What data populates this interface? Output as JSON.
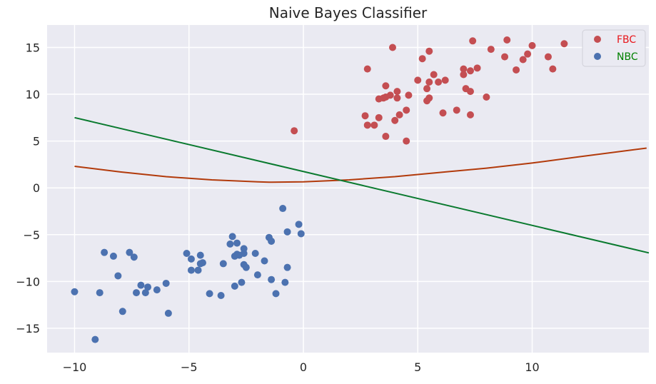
{
  "chart_data": {
    "type": "scatter",
    "title": "Naive Bayes Classifier",
    "xlabel": "",
    "ylabel": "",
    "xlim": [
      -11.2,
      15.1
    ],
    "ylim": [
      -17.6,
      17.4
    ],
    "xticks": [
      -10,
      -5,
      0,
      5,
      10
    ],
    "xtick_labels": [
      "−10",
      "−5",
      "0",
      "5",
      "10"
    ],
    "yticks": [
      -15,
      -10,
      -5,
      0,
      5,
      10,
      15
    ],
    "ytick_labels": [
      "−15",
      "−10",
      "−5",
      "0",
      "5",
      "10",
      "15"
    ],
    "grid": true,
    "legend_position": "top-right",
    "background_color": "#eaeaf2",
    "series": [
      {
        "name": "FBC",
        "type": "scatter",
        "color": "#c44e52",
        "label_color": "#e8161b",
        "points": [
          [
            -0.4,
            6.1
          ],
          [
            2.7,
            7.7
          ],
          [
            2.8,
            6.7
          ],
          [
            2.8,
            12.7
          ],
          [
            3.1,
            6.7
          ],
          [
            3.3,
            7.5
          ],
          [
            3.3,
            9.5
          ],
          [
            3.5,
            9.6
          ],
          [
            3.6,
            9.7
          ],
          [
            3.6,
            10.9
          ],
          [
            3.6,
            5.5
          ],
          [
            3.8,
            9.9
          ],
          [
            3.9,
            15.0
          ],
          [
            4.0,
            7.2
          ],
          [
            4.1,
            9.6
          ],
          [
            4.1,
            10.3
          ],
          [
            4.2,
            7.8
          ],
          [
            4.5,
            5.0
          ],
          [
            4.5,
            8.3
          ],
          [
            4.6,
            9.9
          ],
          [
            5.0,
            11.5
          ],
          [
            5.2,
            13.8
          ],
          [
            5.4,
            9.3
          ],
          [
            5.4,
            10.6
          ],
          [
            5.5,
            9.6
          ],
          [
            5.5,
            11.3
          ],
          [
            5.5,
            14.6
          ],
          [
            5.7,
            12.1
          ],
          [
            5.9,
            11.3
          ],
          [
            6.1,
            8.0
          ],
          [
            6.2,
            11.5
          ],
          [
            6.7,
            8.3
          ],
          [
            7.0,
            12.7
          ],
          [
            7.0,
            12.1
          ],
          [
            7.1,
            10.6
          ],
          [
            7.3,
            7.8
          ],
          [
            7.3,
            10.3
          ],
          [
            7.3,
            12.5
          ],
          [
            7.4,
            15.7
          ],
          [
            7.6,
            12.8
          ],
          [
            8.0,
            9.7
          ],
          [
            8.2,
            14.8
          ],
          [
            8.8,
            14.0
          ],
          [
            8.9,
            15.8
          ],
          [
            9.3,
            12.6
          ],
          [
            9.6,
            13.7
          ],
          [
            9.8,
            14.3
          ],
          [
            10.0,
            15.2
          ],
          [
            10.7,
            14.0
          ],
          [
            10.9,
            12.7
          ],
          [
            11.4,
            15.4
          ]
        ]
      },
      {
        "name": "NBC",
        "type": "scatter",
        "color": "#4c72b0",
        "label_color": "#008000",
        "points": [
          [
            -10.0,
            -11.1
          ],
          [
            -9.1,
            -16.2
          ],
          [
            -8.9,
            -11.2
          ],
          [
            -8.7,
            -6.9
          ],
          [
            -8.3,
            -7.3
          ],
          [
            -8.1,
            -9.4
          ],
          [
            -7.9,
            -13.2
          ],
          [
            -7.6,
            -6.9
          ],
          [
            -7.4,
            -7.4
          ],
          [
            -7.3,
            -11.2
          ],
          [
            -7.1,
            -10.4
          ],
          [
            -6.9,
            -11.2
          ],
          [
            -6.8,
            -10.6
          ],
          [
            -6.4,
            -10.9
          ],
          [
            -6.0,
            -10.2
          ],
          [
            -5.9,
            -13.4
          ],
          [
            -5.1,
            -7.0
          ],
          [
            -4.9,
            -7.6
          ],
          [
            -4.9,
            -8.8
          ],
          [
            -4.6,
            -8.8
          ],
          [
            -4.5,
            -7.2
          ],
          [
            -4.5,
            -8.1
          ],
          [
            -4.4,
            -8.0
          ],
          [
            -4.1,
            -11.3
          ],
          [
            -3.6,
            -11.5
          ],
          [
            -3.5,
            -8.1
          ],
          [
            -3.2,
            -6.0
          ],
          [
            -3.1,
            -5.2
          ],
          [
            -3.0,
            -7.3
          ],
          [
            -3.0,
            -10.5
          ],
          [
            -2.9,
            -5.9
          ],
          [
            -2.9,
            -7.1
          ],
          [
            -2.8,
            -7.2
          ],
          [
            -2.7,
            -10.1
          ],
          [
            -2.6,
            -6.5
          ],
          [
            -2.6,
            -7.0
          ],
          [
            -2.6,
            -8.2
          ],
          [
            -2.5,
            -8.5
          ],
          [
            -2.1,
            -7.0
          ],
          [
            -2.0,
            -9.3
          ],
          [
            -1.7,
            -7.8
          ],
          [
            -1.5,
            -5.3
          ],
          [
            -1.4,
            -5.7
          ],
          [
            -1.4,
            -9.8
          ],
          [
            -1.2,
            -11.3
          ],
          [
            -0.9,
            -2.2
          ],
          [
            -0.8,
            -10.1
          ],
          [
            -0.7,
            -8.5
          ],
          [
            -0.7,
            -4.7
          ],
          [
            -0.2,
            -3.9
          ],
          [
            -0.1,
            -4.9
          ]
        ]
      },
      {
        "type": "line",
        "color": "#b23a0b",
        "x": [
          -10,
          -8,
          -6,
          -4,
          -2,
          -1.5,
          0,
          1,
          2,
          4,
          6,
          8,
          10,
          12,
          15
        ],
        "y": [
          2.3,
          1.7,
          1.2,
          0.85,
          0.65,
          0.6,
          0.65,
          0.75,
          0.85,
          1.2,
          1.65,
          2.1,
          2.65,
          3.3,
          4.25
        ]
      },
      {
        "type": "line",
        "color": "#0a7a2f",
        "x": [
          -10,
          15.1
        ],
        "y": [
          7.5,
          -6.95
        ]
      }
    ]
  }
}
